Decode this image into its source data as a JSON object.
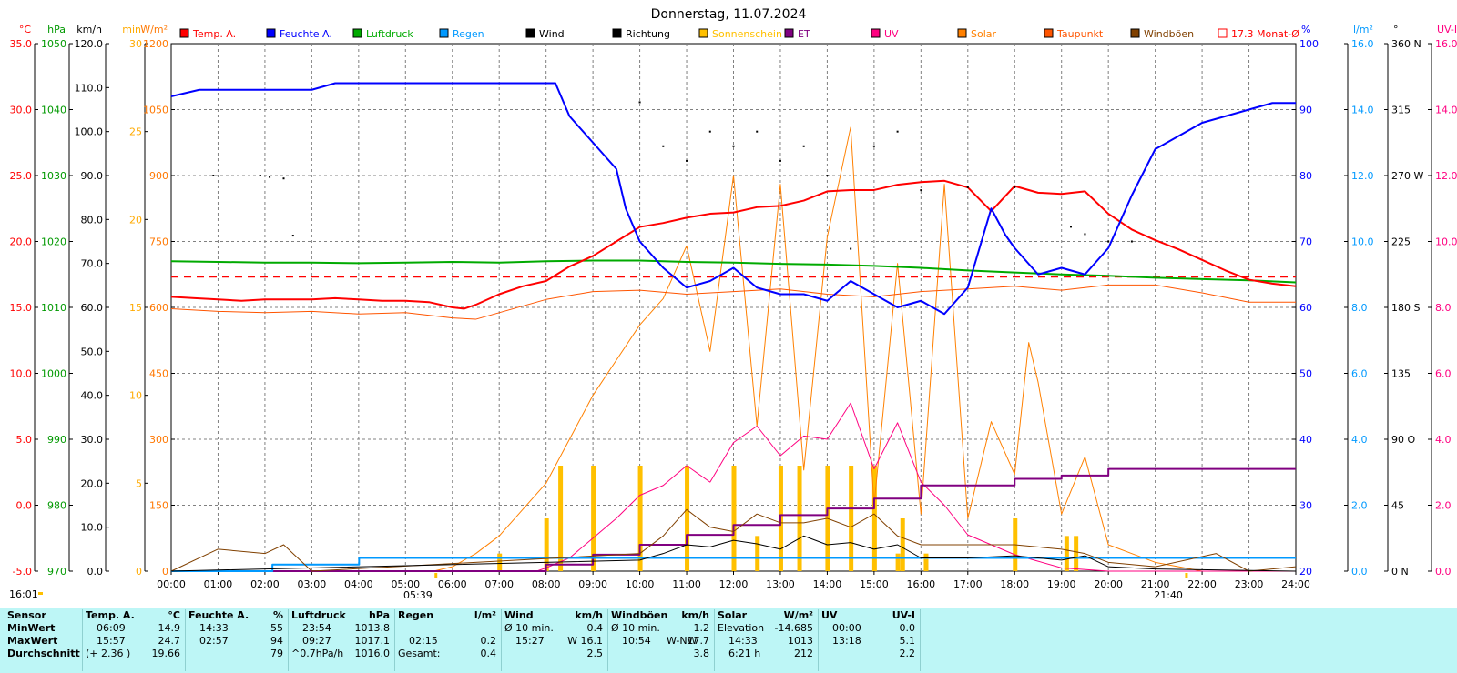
{
  "chart_data": {
    "type": "line",
    "title": "Donnerstag, 11.07.2024",
    "x_ticks": [
      "00:00",
      "01:00",
      "02:00",
      "03:00",
      "04:00",
      "05:00",
      "06:00",
      "07:00",
      "08:00",
      "09:00",
      "10:00",
      "11:00",
      "12:00",
      "13:00",
      "14:00",
      "15:00",
      "16:00",
      "17:00",
      "18:00",
      "19:00",
      "20:00",
      "21:00",
      "22:00",
      "23:00",
      "24:00"
    ],
    "sunrise": "05:39",
    "sunset": "21:40",
    "corner_time": "16:01",
    "left_axes": [
      {
        "unit": "°C",
        "color": "#ff0000",
        "ticks": [
          "35.0",
          "30.0",
          "25.0",
          "20.0",
          "15.0",
          "10.0",
          "5.0",
          "0.0",
          "-5.0"
        ]
      },
      {
        "unit": "hPa",
        "color": "#009900",
        "ticks": [
          "1050",
          "1040",
          "1030",
          "1020",
          "1010",
          "1000",
          "990",
          "980",
          "970"
        ]
      },
      {
        "unit": "km/h",
        "color": "#000000",
        "ticks": [
          "120.0",
          "110.0",
          "100.0",
          "90.0",
          "80.0",
          "70.0",
          "60.0",
          "50.0",
          "40.0",
          "30.0",
          "20.0",
          "10.0",
          "0.0"
        ]
      },
      {
        "unit": "min",
        "color": "#ffaa00",
        "ticks": [
          "30",
          "25",
          "20",
          "15",
          "10",
          "5",
          "0"
        ]
      },
      {
        "unit": "W/m²",
        "color": "#ff7700",
        "ticks": [
          "1200",
          "1050",
          "900",
          "750",
          "600",
          "450",
          "300",
          "150",
          "0"
        ]
      }
    ],
    "right_axes": [
      {
        "unit": "%",
        "color": "#0000ff",
        "ticks": [
          "100",
          "90",
          "80",
          "70",
          "60",
          "50",
          "40",
          "30",
          "20"
        ]
      },
      {
        "unit": "l/m²",
        "color": "#0099ff",
        "ticks": [
          "16.0",
          "14.0",
          "12.0",
          "10.0",
          "8.0",
          "6.0",
          "4.0",
          "2.0",
          "0.0"
        ]
      },
      {
        "unit": "°",
        "color": "#000000",
        "ticks": [
          "360 N",
          "315",
          "270 W",
          "225",
          "180 S",
          "135",
          "90 O",
          "45",
          "0 N"
        ]
      },
      {
        "unit": "UV-I",
        "color": "#ff0080",
        "ticks": [
          "16.0",
          "14.0",
          "12.0",
          "10.0",
          "8.0",
          "6.0",
          "4.0",
          "2.0",
          "0.0"
        ]
      }
    ],
    "legend": [
      {
        "label": "Temp. A.",
        "color": "#ff0000"
      },
      {
        "label": "Feuchte A.",
        "color": "#0000ff"
      },
      {
        "label": "Luftdruck",
        "color": "#00aa00"
      },
      {
        "label": "Regen",
        "color": "#0099ff"
      },
      {
        "label": "Wind",
        "color": "#000000"
      },
      {
        "label": "Richtung",
        "color": "#000000"
      },
      {
        "label": "Sonnenschein",
        "color": "#ffc000"
      },
      {
        "label": "ET",
        "color": "#800080"
      },
      {
        "label": "UV",
        "color": "#ff0080"
      },
      {
        "label": "Solar",
        "color": "#ff8000"
      },
      {
        "label": "Taupunkt",
        "color": "#ff5500"
      },
      {
        "label": "Windböen",
        "color": "#804000"
      },
      {
        "label": "17.3 Monat-Ø",
        "color": "#ff0000"
      }
    ],
    "monthly_avg_temp": 17.3,
    "series": [
      {
        "name": "Temp. A.",
        "unit": "°C",
        "x": [
          0,
          0.5,
          1,
          1.5,
          2,
          2.5,
          3,
          3.5,
          4,
          4.5,
          5,
          5.5,
          6,
          6.25,
          6.5,
          7,
          7.5,
          8,
          8.5,
          9,
          9.5,
          10,
          10.5,
          11,
          11.5,
          12,
          12.5,
          13,
          13.5,
          14,
          14.5,
          15,
          15.5,
          16,
          16.5,
          17,
          17.5,
          18,
          18.5,
          19,
          19.5,
          20,
          20.5,
          21,
          21.5,
          22,
          22.5,
          23,
          23.5,
          24
        ],
        "values": [
          15.8,
          15.7,
          15.6,
          15.5,
          15.6,
          15.6,
          15.6,
          15.7,
          15.6,
          15.5,
          15.5,
          15.4,
          15.0,
          14.9,
          15.2,
          16.0,
          16.6,
          17.0,
          18.1,
          18.9,
          20.0,
          21.1,
          21.4,
          21.8,
          22.1,
          22.2,
          22.6,
          22.7,
          23.1,
          23.8,
          23.9,
          23.9,
          24.3,
          24.5,
          24.6,
          24.1,
          22.3,
          24.2,
          23.7,
          23.6,
          23.8,
          22.1,
          20.9,
          20.1,
          19.4,
          18.6,
          17.8,
          17.1,
          16.8,
          16.6
        ]
      },
      {
        "name": "Feuchte A.",
        "unit": "%",
        "x": [
          0,
          0.6,
          1,
          1.5,
          2,
          2.5,
          3,
          3.5,
          4,
          4.5,
          5,
          5.5,
          6,
          6.5,
          7,
          7.5,
          8,
          8.2,
          8.5,
          9,
          9.5,
          9.7,
          10,
          10.5,
          11,
          11.5,
          12,
          12.5,
          13,
          13.5,
          14,
          14.5,
          15,
          15.5,
          16,
          16.5,
          17,
          17.5,
          17.8,
          18,
          18.5,
          19,
          19.5,
          20,
          20.5,
          21,
          21.5,
          22,
          22.5,
          23,
          23.5,
          24
        ],
        "values": [
          92,
          93,
          93,
          93,
          93,
          93,
          93,
          94,
          94,
          94,
          94,
          94,
          94,
          94,
          94,
          94,
          94,
          94,
          89,
          85,
          81,
          75,
          70,
          66,
          63,
          64,
          66,
          63,
          62,
          62,
          61,
          64,
          62,
          60,
          61,
          59,
          63,
          75,
          71,
          69,
          65,
          66,
          65,
          69,
          77,
          84,
          86,
          88,
          89,
          90,
          91,
          91
        ]
      },
      {
        "name": "Luftdruck",
        "unit": "hPa",
        "x": [
          0,
          1,
          2,
          3,
          4,
          5,
          6,
          7,
          8,
          9,
          10,
          11,
          12,
          13,
          14,
          15,
          16,
          17,
          18,
          19,
          20,
          21,
          22,
          23,
          24
        ],
        "values": [
          1017.0,
          1016.9,
          1016.8,
          1016.8,
          1016.7,
          1016.8,
          1016.9,
          1016.8,
          1017.0,
          1017.1,
          1017.1,
          1016.9,
          1016.8,
          1016.6,
          1016.5,
          1016.3,
          1016.0,
          1015.6,
          1015.3,
          1015.0,
          1014.8,
          1014.5,
          1014.3,
          1014.1,
          1013.8
        ]
      },
      {
        "name": "Regen",
        "unit": "l/m²",
        "x": [
          0,
          2.15,
          2.16,
          4.0,
          4.01,
          24
        ],
        "values": [
          0.0,
          0.0,
          0.2,
          0.2,
          0.4,
          0.4
        ]
      },
      {
        "name": "Wind",
        "unit": "km/h",
        "x": [
          0,
          10,
          10.5,
          11,
          11.5,
          12,
          12.5,
          13,
          13.5,
          14,
          14.5,
          15,
          15.5,
          16,
          17,
          18,
          19,
          19.5,
          20,
          21,
          24
        ],
        "values": [
          0,
          2.5,
          4.0,
          6.0,
          5.5,
          7.0,
          6.2,
          5.0,
          8.0,
          6.0,
          6.5,
          5.0,
          6.0,
          3.0,
          3.0,
          3.5,
          2.5,
          3.5,
          1.0,
          0.5,
          0.0
        ]
      },
      {
        "name": "Windböen",
        "unit": "km/h",
        "x": [
          0,
          1,
          2,
          2.4,
          3,
          10,
          10.5,
          11,
          11.5,
          12,
          12.5,
          13,
          13.5,
          14,
          14.5,
          15,
          15.5,
          16,
          17,
          18,
          19,
          19.5,
          20,
          21,
          22.3,
          23,
          24
        ],
        "values": [
          0,
          5,
          4,
          6,
          0,
          4,
          8,
          14,
          10,
          9,
          13,
          11,
          11,
          12,
          10,
          13,
          8,
          6,
          6,
          6,
          5,
          4,
          2,
          1,
          4,
          0,
          1
        ]
      },
      {
        "name": "Solar",
        "unit": "W/m²",
        "x": [
          0,
          5.6,
          6,
          6.5,
          7,
          7.5,
          8,
          8.5,
          9,
          9.5,
          10,
          10.5,
          11,
          11.5,
          12,
          12.5,
          13,
          13.5,
          14,
          14.5,
          15,
          15.5,
          16,
          16.5,
          17,
          17.5,
          18,
          18.3,
          18.5,
          19,
          19.5,
          20,
          20.5,
          21,
          21.5,
          22,
          24
        ],
        "values": [
          0,
          0,
          10,
          40,
          80,
          140,
          200,
          300,
          400,
          480,
          560,
          620,
          740,
          500,
          900,
          330,
          880,
          230,
          760,
          1010,
          150,
          700,
          130,
          880,
          120,
          340,
          220,
          520,
          430,
          130,
          260,
          60,
          40,
          20,
          10,
          0,
          0
        ]
      },
      {
        "name": "Taupunkt",
        "unit": "°C",
        "x": [
          0,
          1,
          2,
          3,
          4,
          5,
          6,
          6.5,
          7,
          8,
          9,
          10,
          11,
          12,
          13,
          14,
          15,
          16,
          17,
          18,
          19,
          20,
          21,
          22,
          23,
          24
        ],
        "values": [
          14.9,
          14.7,
          14.6,
          14.7,
          14.5,
          14.6,
          14.2,
          14.1,
          14.6,
          15.6,
          16.2,
          16.3,
          16.0,
          16.2,
          16.4,
          16.0,
          15.8,
          16.2,
          16.4,
          16.6,
          16.3,
          16.7,
          16.7,
          16.1,
          15.4,
          15.4
        ]
      },
      {
        "name": "UV",
        "unit": "UV-I",
        "x": [
          0,
          7.8,
          8,
          8.5,
          9,
          9.5,
          10,
          10.5,
          11,
          11.5,
          12,
          12.5,
          13,
          13.5,
          14,
          14.5,
          15,
          15.5,
          16,
          16.5,
          17,
          17.5,
          18,
          18.5,
          19,
          20,
          24
        ],
        "values": [
          0,
          0,
          0.1,
          0.4,
          1.0,
          1.6,
          2.3,
          2.6,
          3.2,
          2.7,
          3.9,
          4.4,
          3.5,
          4.1,
          4.0,
          5.1,
          3.1,
          4.5,
          2.7,
          2.0,
          1.1,
          0.8,
          0.5,
          0.3,
          0.1,
          0,
          0
        ]
      },
      {
        "name": "ET",
        "unit": "l/m²",
        "x": [
          0,
          7.9,
          8.0,
          9.0,
          10.0,
          11.0,
          12.0,
          13.0,
          14.0,
          15.0,
          16.0,
          18.0,
          19.0,
          20.0,
          24
        ],
        "values": [
          0,
          0,
          0.2,
          0.5,
          0.8,
          1.1,
          1.4,
          1.7,
          1.9,
          2.2,
          2.6,
          2.8,
          2.9,
          3.1,
          3.1
        ]
      },
      {
        "name": "Sonnenschein",
        "unit": "min",
        "x": [
          7.0,
          8.0,
          8.3,
          9,
          10,
          11,
          12,
          12.5,
          13,
          13.4,
          14,
          14.5,
          15,
          15.5,
          15.6,
          16.1,
          17.0,
          18.0,
          18.2,
          19.1,
          19.3
        ],
        "values": [
          1,
          3,
          6,
          6,
          6,
          6,
          6,
          2,
          6,
          6,
          6,
          6,
          6,
          1,
          3,
          1,
          0,
          3,
          0,
          2,
          2
        ]
      },
      {
        "name": "Richtung",
        "unit": "°",
        "x": [
          0.9,
          1.9,
          2.1,
          2.4,
          2.6,
          10.0,
          10.5,
          11.0,
          11.5,
          12.0,
          12.5,
          13.0,
          13.5,
          14.0,
          14.5,
          15.0,
          15.5,
          16.0,
          17.0,
          18.0,
          19.2,
          19.5,
          20.0,
          20.5
        ],
        "values": [
          270,
          270,
          269,
          268,
          229,
          320,
          290,
          280,
          300,
          290,
          300,
          280,
          290,
          270,
          220,
          290,
          300,
          260,
          262,
          262,
          235,
          230,
          225,
          225
        ]
      }
    ]
  },
  "stats": {
    "headers": {
      "sensor": "Sensor",
      "temp": "Temp. A.",
      "temp_unit": "°C",
      "hum": "Feuchte A.",
      "hum_unit": "%",
      "press": "Luftdruck",
      "press_unit": "hPa",
      "rain": "Regen",
      "rain_unit": "l/m²",
      "wind": "Wind",
      "wind_unit": "km/h",
      "gust": "Windböen",
      "gust_unit": "km/h",
      "solar": "Solar",
      "solar_unit": "W/m²",
      "uv": "UV",
      "uv_unit": "UV-I"
    },
    "row_labels": [
      "MinWert",
      "MaxWert",
      "Durchschnitt"
    ],
    "temp_time": [
      "06:09",
      "15:57",
      "(+ 2.36 )"
    ],
    "temp_val": [
      "14.9",
      "24.7",
      "19.66"
    ],
    "hum_time": [
      "14:33",
      "02:57",
      ""
    ],
    "hum_val": [
      "55",
      "94",
      "79"
    ],
    "press_time": [
      "23:54",
      "09:27",
      "^0.7hPa/h"
    ],
    "press_val": [
      "1013.8",
      "1017.1",
      "1016.0"
    ],
    "rain_time": [
      "",
      "02:15",
      "Gesamt:"
    ],
    "rain_val": [
      "",
      "0.2",
      "0.4"
    ],
    "wind_time": [
      "Ø 10 min.",
      "15:27",
      ""
    ],
    "wind_val": [
      "0.4",
      "W 16.1",
      "2.5"
    ],
    "gust_time": [
      "Ø 10 min.",
      "10:54",
      ""
    ],
    "gust_dir": [
      "",
      "W-NW",
      ""
    ],
    "gust_val": [
      "1.2",
      "17.7",
      "3.8"
    ],
    "solar_time": [
      "Elevation",
      "14:33",
      "6:21 h"
    ],
    "solar_val": [
      "-14.685",
      "1013",
      "212"
    ],
    "uv_time": [
      "00:00",
      "13:18",
      ""
    ],
    "uv_val": [
      "0.0",
      "5.1",
      "2.2"
    ]
  }
}
